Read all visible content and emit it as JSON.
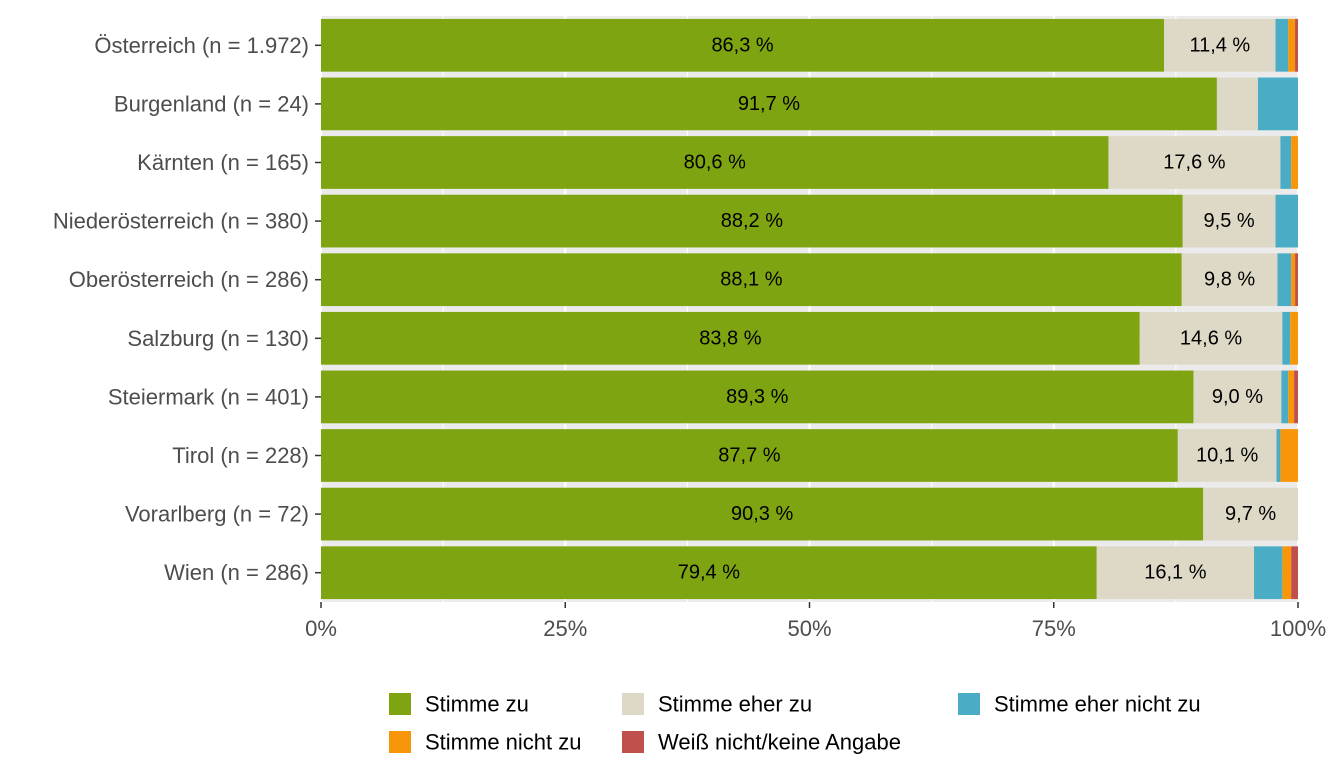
{
  "chart_data": {
    "type": "bar",
    "orientation": "horizontal",
    "stacked": true,
    "categories": [
      "Österreich (n = 1.972)",
      "Burgenland (n = 24)",
      "Kärnten (n = 165)",
      "Niederösterreich (n = 380)",
      "Oberösterreich (n = 286)",
      "Salzburg (n = 130)",
      "Steiermark (n = 401)",
      "Tirol (n = 228)",
      "Vorarlberg (n = 72)",
      "Wien (n = 286)"
    ],
    "series": [
      {
        "name": "Stimme zu",
        "color": "#7fa412",
        "values": [
          86.3,
          91.7,
          80.6,
          88.2,
          88.1,
          83.8,
          89.3,
          87.7,
          90.3,
          79.4
        ],
        "labels": [
          "86,3 %",
          "91,7 %",
          "80,6 %",
          "88,2 %",
          "88,1 %",
          "83,8 %",
          "89,3 %",
          "87,7 %",
          "90,3 %",
          "79,4 %"
        ]
      },
      {
        "name": "Stimme eher zu",
        "color": "#ddd9c6",
        "values": [
          11.4,
          4.2,
          17.6,
          9.5,
          9.8,
          14.6,
          9.0,
          10.1,
          9.7,
          16.1
        ],
        "labels": [
          "11,4 %",
          "",
          "17,6 %",
          "9,5 %",
          "9,8 %",
          "14,6 %",
          "9,0 %",
          "10,1 %",
          "9,7 %",
          "16,1 %"
        ]
      },
      {
        "name": "Stimme eher nicht zu",
        "color": "#4bacc6",
        "values": [
          1.3,
          4.1,
          1.1,
          2.3,
          1.4,
          0.8,
          0.7,
          0.4,
          0,
          2.9
        ],
        "labels": [
          "",
          "",
          "",
          "",
          "",
          "",
          "",
          "",
          "",
          ""
        ]
      },
      {
        "name": "Stimme nicht zu",
        "color": "#f79608",
        "values": [
          0.7,
          0,
          0.7,
          0,
          0.4,
          0.8,
          0.6,
          1.8,
          0,
          0.9
        ],
        "labels": [
          "",
          "",
          "",
          "",
          "",
          "",
          "",
          "",
          "",
          ""
        ]
      },
      {
        "name": "Weiß nicht/keine Angabe",
        "color": "#c0504d",
        "values": [
          0.3,
          0,
          0,
          0,
          0.3,
          0,
          0.4,
          0,
          0,
          0.7
        ],
        "labels": [
          "",
          "",
          "",
          "",
          "",
          "",
          "",
          "",
          "",
          ""
        ]
      }
    ],
    "xlim": [
      0,
      100
    ],
    "xticks": [
      "0%",
      "25%",
      "50%",
      "75%",
      "100%"
    ],
    "xlabel": "",
    "ylabel": "",
    "title": "",
    "grid": true,
    "panel_background": "#ebebeb",
    "legend": {
      "position": "bottom",
      "order": [
        "Stimme zu",
        "Stimme eher zu",
        "Stimme eher nicht zu",
        "Stimme nicht zu",
        "Weiß nicht/keine Angabe"
      ]
    }
  }
}
